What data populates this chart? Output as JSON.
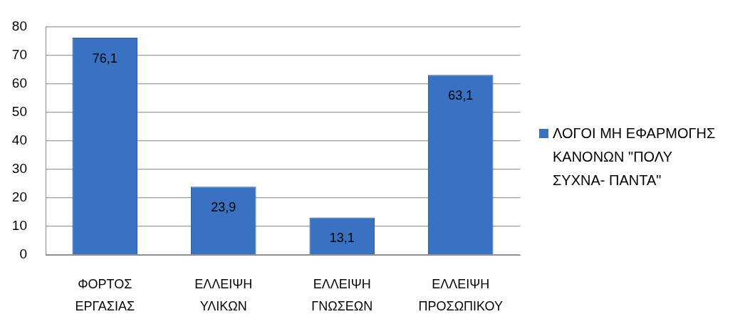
{
  "chart_data": {
    "type": "bar",
    "categories": [
      "ΦΟΡΤΟΣ ΕΡΓΑΣΙΑΣ",
      "ΕΛΛΕΙΨΗ ΥΛΙΚΩΝ",
      "ΕΛΛΕΙΨΗ ΓΝΩΣΕΩΝ",
      "ΕΛΛΕΙΨΗ ΠΡΟΣΩΠΙΚΟΥ"
    ],
    "series": [
      {
        "name": "ΛΟΓΟΙ ΜΗ ΕΦΑΡΜΟΓΗΣ ΚΑΝΟΝΩΝ \"ΠΟΛΥ ΣΥΧΝΑ- ΠΑΝΤΑ\"",
        "color": "#3a72c2",
        "values": [
          76.1,
          23.9,
          13.1,
          63.1
        ],
        "value_labels": [
          "76,1",
          "23,9",
          "13,1",
          "63,1"
        ]
      }
    ],
    "ylim": [
      0,
      80
    ],
    "yticks": [
      0,
      10,
      20,
      30,
      40,
      50,
      60,
      70,
      80
    ],
    "grid": "y",
    "legend": "right"
  }
}
